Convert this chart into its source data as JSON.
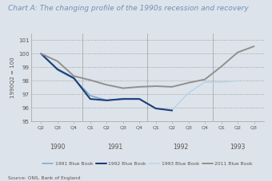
{
  "title": "Chart A: The changing profile of the 1990s recession and recovery",
  "ylabel": "1990Q2 = 100",
  "source": "Source: ONS, Bank of England",
  "ylim": [
    95,
    101.5
  ],
  "yticks": [
    95,
    96,
    97,
    98,
    99,
    100,
    101
  ],
  "ytick_labels": [
    "95",
    "96",
    "97",
    "98",
    "99",
    "100",
    "101"
  ],
  "quarters": [
    "Q2",
    "Q3",
    "Q4",
    "Q1",
    "Q2",
    "Q3",
    "Q4",
    "Q1",
    "Q2",
    "Q3",
    "Q4",
    "Q1",
    "Q2",
    "Q3"
  ],
  "year_groups": [
    {
      "label": "1990",
      "ticks": [
        0,
        1,
        2
      ]
    },
    {
      "label": "1991",
      "ticks": [
        3,
        4,
        5,
        6
      ]
    },
    {
      "label": "1992",
      "ticks": [
        7,
        8,
        9,
        10
      ]
    },
    {
      "label": "1993",
      "ticks": [
        11,
        12,
        13
      ]
    }
  ],
  "series": {
    "1991 Blue Book": {
      "color": "#7ba7c7",
      "linewidth": 1.1,
      "zorder": 3,
      "data_x": [
        0,
        1,
        2,
        3,
        4,
        5,
        6
      ],
      "data_y": [
        100.0,
        98.8,
        98.15,
        96.9,
        96.55,
        96.65,
        96.65
      ]
    },
    "1992 Blue Book": {
      "color": "#1c3f7a",
      "linewidth": 1.5,
      "zorder": 4,
      "data_x": [
        0,
        1,
        2,
        3,
        4,
        5,
        6,
        7,
        8
      ],
      "data_y": [
        100.0,
        98.85,
        98.2,
        96.65,
        96.55,
        96.65,
        96.65,
        95.95,
        95.8
      ]
    },
    "1993 Blue Book": {
      "color": "#b8d4e8",
      "linewidth": 1.1,
      "zorder": 2,
      "data_x": [
        0,
        1,
        2,
        3,
        4,
        5,
        6,
        7,
        8,
        9,
        10,
        11,
        12
      ],
      "data_y": [
        100.0,
        98.85,
        98.2,
        96.9,
        96.55,
        96.7,
        96.7,
        95.95,
        95.82,
        97.1,
        97.9,
        97.9,
        98.0
      ]
    },
    "2011 Blue Book": {
      "color": "#909090",
      "linewidth": 1.4,
      "zorder": 5,
      "data_x": [
        0,
        1,
        2,
        3,
        4,
        5,
        6,
        7,
        8,
        9,
        10,
        11,
        12,
        13
      ],
      "data_y": [
        100.0,
        99.45,
        98.35,
        98.05,
        97.7,
        97.45,
        97.55,
        97.6,
        97.55,
        97.85,
        98.1,
        99.05,
        100.1,
        100.55
      ]
    }
  },
  "legend_order": [
    "1991 Blue Book",
    "1992 Blue Book",
    "1993 Blue Book",
    "2011 Blue Book"
  ],
  "bg_color": "#dde3ea",
  "title_color": "#7090b8",
  "text_color": "#555555",
  "grid_color": "#888888",
  "sep_color": "#aaaaaa"
}
